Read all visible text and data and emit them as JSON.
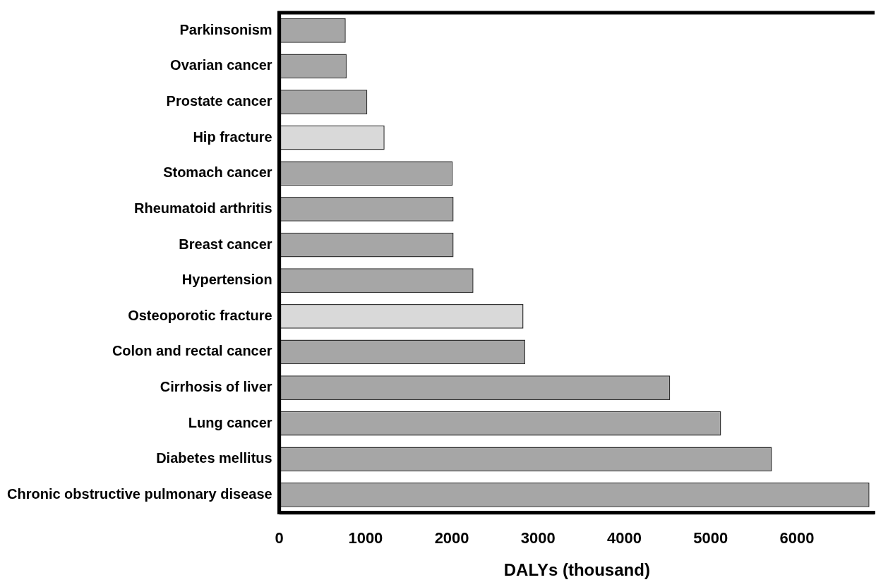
{
  "chart_data": {
    "type": "bar",
    "orientation": "horizontal",
    "xlabel": "DALYs (thousand)",
    "categories": [
      "Parkinsonism",
      "Ovarian cancer",
      "Prostate cancer",
      "Hip fracture",
      "Stomach cancer",
      "Rheumatoid arthritis",
      "Breast cancer",
      "Hypertension",
      "Osteoporotic fracture",
      "Colon and rectal cancer",
      "Cirrhosis of liver",
      "Lung cancer",
      "Diabetes mellitus",
      "Chronic obstructive pulmonary disease"
    ],
    "values": [
      770,
      780,
      1020,
      1220,
      2010,
      2020,
      2020,
      2250,
      2830,
      2850,
      4530,
      5120,
      5710,
      6840
    ],
    "colors": [
      "#a6a6a6",
      "#a6a6a6",
      "#a6a6a6",
      "#d9d9d9",
      "#a6a6a6",
      "#a6a6a6",
      "#a6a6a6",
      "#a6a6a6",
      "#d9d9d9",
      "#a6a6a6",
      "#a6a6a6",
      "#a6a6a6",
      "#a6a6a6",
      "#a6a6a6"
    ],
    "xlim": [
      0,
      6900
    ],
    "xticks": [
      0,
      1000,
      2000,
      3000,
      4000,
      5000,
      6000
    ],
    "grid": false,
    "legend": false
  }
}
